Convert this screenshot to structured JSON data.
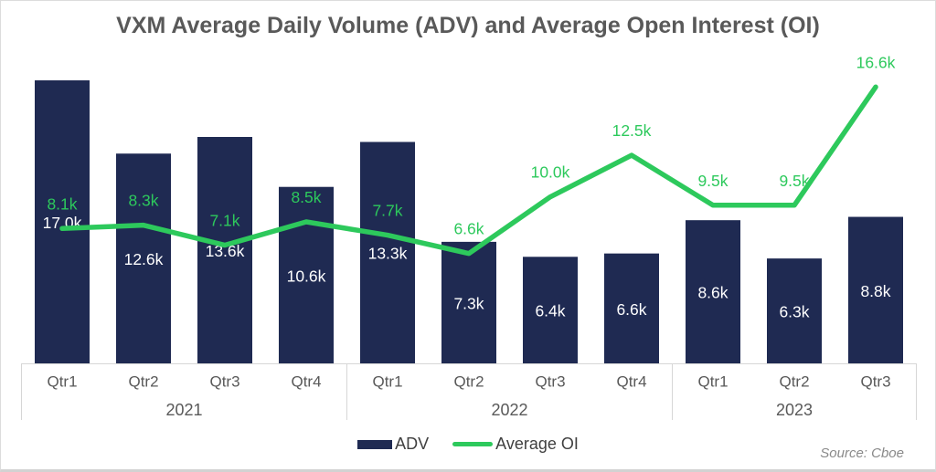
{
  "title": "VXM Average Daily Volume (ADV) and Average Open Interest (OI)",
  "legend": {
    "adv_label": "ADV",
    "oi_label": "Average OI"
  },
  "source": "Source: Cboe",
  "colors": {
    "bar_navy": "#1f2a52",
    "line_green": "#2dc95c",
    "axis_gray": "#d6d6d6",
    "category_text": "#595959",
    "title_text": "#595959",
    "value_text_white": "#ffffff",
    "source_text": "#8a8a8a"
  },
  "chart_data": {
    "type": "bar",
    "combo": "bar+line",
    "title": "VXM Average Daily Volume (ADV) and Average Open Interest (OI)",
    "categories": [
      {
        "year": "2021",
        "quarter": "Qtr1"
      },
      {
        "year": "2021",
        "quarter": "Qtr2"
      },
      {
        "year": "2021",
        "quarter": "Qtr3"
      },
      {
        "year": "2021",
        "quarter": "Qtr4"
      },
      {
        "year": "2022",
        "quarter": "Qtr1"
      },
      {
        "year": "2022",
        "quarter": "Qtr2"
      },
      {
        "year": "2022",
        "quarter": "Qtr3"
      },
      {
        "year": "2022",
        "quarter": "Qtr4"
      },
      {
        "year": "2023",
        "quarter": "Qtr1"
      },
      {
        "year": "2023",
        "quarter": "Qtr2"
      },
      {
        "year": "2023",
        "quarter": "Qtr3"
      }
    ],
    "year_groups": [
      {
        "label": "2021",
        "count": 4
      },
      {
        "label": "2022",
        "count": 4
      },
      {
        "label": "2023",
        "count": 3
      }
    ],
    "series": [
      {
        "name": "ADV",
        "type": "bar",
        "color": "#1f2a52",
        "values_k": [
          17.0,
          12.6,
          13.6,
          10.6,
          13.3,
          7.3,
          6.4,
          6.6,
          8.6,
          6.3,
          8.8
        ],
        "labels": [
          "17.0k",
          "12.6k",
          "13.6k",
          "10.6k",
          "13.3k",
          "7.3k",
          "6.4k",
          "6.6k",
          "8.6k",
          "6.3k",
          "8.8k"
        ]
      },
      {
        "name": "Average OI",
        "type": "line",
        "color": "#2dc95c",
        "values_k": [
          8.1,
          8.3,
          7.1,
          8.5,
          7.7,
          6.6,
          10.0,
          12.5,
          9.5,
          9.5,
          16.6
        ],
        "labels": [
          "8.1k",
          "8.3k",
          "7.1k",
          "8.5k",
          "7.7k",
          "6.6k",
          "10.0k",
          "12.5k",
          "9.5k",
          "9.5k",
          "16.6k"
        ]
      }
    ],
    "xlabel": "",
    "ylabel": "",
    "ylim_k": [
      0,
      17.5
    ],
    "gridlines": false,
    "value_labels_shown": true,
    "legend_position": "bottom-center"
  }
}
